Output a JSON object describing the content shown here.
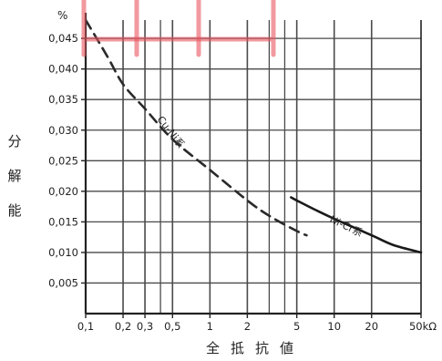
{
  "chart_data": {
    "type": "line",
    "x_scale": "log",
    "x_ticks": [
      {
        "value": 0.1,
        "label": "0,1"
      },
      {
        "value": 0.2,
        "label": "0,2"
      },
      {
        "value": 0.3,
        "label": "0,3"
      },
      {
        "value": 0.5,
        "label": "0,5"
      },
      {
        "value": 1,
        "label": "1"
      },
      {
        "value": 2,
        "label": "2"
      },
      {
        "value": 5,
        "label": "5"
      },
      {
        "value": 10,
        "label": "10"
      },
      {
        "value": 20,
        "label": "20"
      },
      {
        "value": 50,
        "label": "50kΩ"
      }
    ],
    "x_minor_gridlines": [
      0.4,
      3,
      4
    ],
    "y_ticks": [
      {
        "value": 0.005,
        "label": "0,005"
      },
      {
        "value": 0.01,
        "label": "0,010"
      },
      {
        "value": 0.015,
        "label": "0,015"
      },
      {
        "value": 0.02,
        "label": "0,020"
      },
      {
        "value": 0.025,
        "label": "0,025"
      },
      {
        "value": 0.03,
        "label": "0,030"
      },
      {
        "value": 0.035,
        "label": "0,035"
      },
      {
        "value": 0.04,
        "label": "0,040"
      },
      {
        "value": 0.045,
        "label": "0,045"
      }
    ],
    "ylim": [
      0,
      0.048
    ],
    "xlim": [
      0.1,
      50
    ],
    "y_unit": "%",
    "ylabel": "分解能",
    "xlabel": "全抵抗値",
    "grid": true,
    "series": [
      {
        "name": "Cu-Ni系",
        "style": "dashed",
        "color": "#2a2a2a",
        "points": [
          [
            0.1,
            0.048
          ],
          [
            0.15,
            0.042
          ],
          [
            0.2,
            0.0375
          ],
          [
            0.3,
            0.0335
          ],
          [
            0.5,
            0.0285
          ],
          [
            1,
            0.0235
          ],
          [
            2,
            0.0185
          ],
          [
            3,
            0.016
          ],
          [
            5,
            0.0135
          ],
          [
            6,
            0.0128
          ]
        ]
      },
      {
        "name": "Ni-Cr系",
        "style": "solid",
        "color": "#1a1a1a",
        "points": [
          [
            4.5,
            0.019
          ],
          [
            5,
            0.0185
          ],
          [
            7,
            0.017
          ],
          [
            10,
            0.0155
          ],
          [
            20,
            0.0128
          ],
          [
            30,
            0.0112
          ],
          [
            50,
            0.01
          ]
        ]
      }
    ],
    "colors": {
      "grid": "#4a4a4a",
      "axis": "#222222",
      "highlight": "#e8555f"
    }
  }
}
